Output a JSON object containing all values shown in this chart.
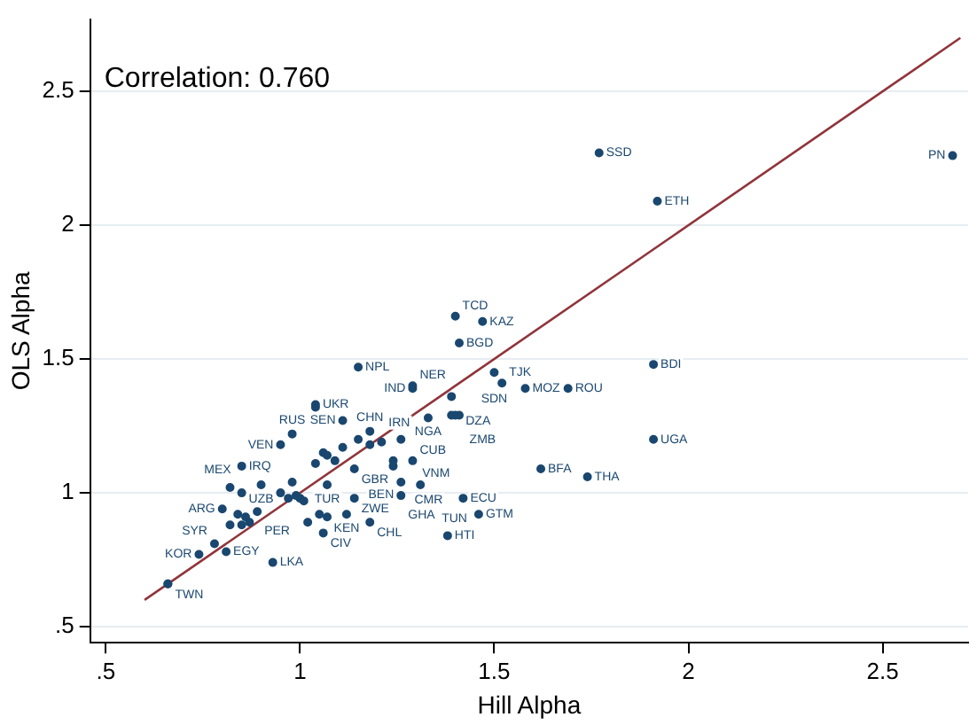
{
  "chart_data": {
    "type": "scatter",
    "xlabel": "Hill Alpha",
    "ylabel": "OLS Alpha",
    "annotations": [
      "Correlation: 0.760",
      {
        "text": "SSD",
        "x": 1.77,
        "y": 2.27
      },
      {
        "text": "PN",
        "x": 2.68,
        "y": 2.26
      },
      {
        "text": "ETH",
        "x": 1.92,
        "y": 2.09
      },
      {
        "text": "TCD",
        "x": 1.4,
        "y": 1.66
      },
      {
        "text": "KAZ",
        "x": 1.47,
        "y": 1.64
      },
      {
        "text": "BGD",
        "x": 1.41,
        "y": 1.56
      },
      {
        "text": "NPL",
        "x": 1.15,
        "y": 1.47
      },
      {
        "text": "BDI",
        "x": 1.91,
        "y": 1.48
      },
      {
        "text": "SDN",
        "x": 1.5,
        "y": 1.45
      },
      {
        "text": "TJK",
        "x": 1.52,
        "y": 1.41
      },
      {
        "text": "MOZ",
        "x": 1.58,
        "y": 1.39
      },
      {
        "text": "ROU",
        "x": 1.69,
        "y": 1.39
      },
      {
        "text": "NER",
        "x": 1.29,
        "y": 1.4
      },
      {
        "text": "IND",
        "x": 1.29,
        "y": 1.39
      },
      {
        "text": "DZA",
        "x": 1.39,
        "y": 1.36
      },
      {
        "text": "UKR",
        "x": 1.04,
        "y": 1.33
      },
      {
        "text": "SEN",
        "x": 1.11,
        "y": 1.27
      },
      {
        "text": "NGA",
        "x": 1.33,
        "y": 1.28
      },
      {
        "text": "ZMB",
        "x": 1.4,
        "y": 1.29
      },
      {
        "text": "UGA",
        "x": 1.91,
        "y": 1.2
      },
      {
        "text": "RUS",
        "x": 0.98,
        "y": 1.22
      },
      {
        "text": "VEN",
        "x": 0.95,
        "y": 1.18
      },
      {
        "text": "CHN",
        "x": 1.18,
        "y": 1.23
      },
      {
        "text": "VNM",
        "x": 1.26,
        "y": 1.2
      },
      {
        "text": "IRN",
        "x": 1.21,
        "y": 1.19
      },
      {
        "text": "GBR",
        "x": 1.14,
        "y": 1.09
      },
      {
        "text": "CMR",
        "x": 1.24,
        "y": 1.1
      },
      {
        "text": "CUB",
        "x": 1.29,
        "y": 1.12
      },
      {
        "text": "BFA",
        "x": 1.62,
        "y": 1.09
      },
      {
        "text": "THA",
        "x": 1.74,
        "y": 1.06
      },
      {
        "text": "BEN",
        "x": 1.26,
        "y": 1.04
      },
      {
        "text": "TUN",
        "x": 1.31,
        "y": 1.03
      },
      {
        "text": "GHA",
        "x": 1.26,
        "y": 0.99
      },
      {
        "text": "ZWE",
        "x": 1.14,
        "y": 0.98
      },
      {
        "text": "TUR",
        "x": 1.07,
        "y": 1.03
      },
      {
        "text": "ECU",
        "x": 1.42,
        "y": 0.98
      },
      {
        "text": "GTM",
        "x": 1.46,
        "y": 0.92
      },
      {
        "text": "HTI",
        "x": 1.38,
        "y": 0.84
      },
      {
        "text": "CHL",
        "x": 1.18,
        "y": 0.89
      },
      {
        "text": "KEN",
        "x": 1.12,
        "y": 0.92
      },
      {
        "text": "CIV",
        "x": 1.06,
        "y": 0.85
      },
      {
        "text": "LKA",
        "x": 0.93,
        "y": 0.74
      },
      {
        "text": "IRQ",
        "x": 0.85,
        "y": 1.1
      },
      {
        "text": "UZB",
        "x": 0.9,
        "y": 1.03
      },
      {
        "text": "MEX",
        "x": 0.85,
        "y": 1.0
      },
      {
        "text": "ARG",
        "x": 0.8,
        "y": 0.94
      },
      {
        "text": "PER",
        "x": 0.89,
        "y": 0.93
      },
      {
        "text": "SYR",
        "x": 0.78,
        "y": 0.81
      },
      {
        "text": "KOR",
        "x": 0.74,
        "y": 0.77
      },
      {
        "text": "EGY",
        "x": 0.81,
        "y": 0.78
      },
      {
        "text": "TWN",
        "x": 0.66,
        "y": 0.66
      }
    ],
    "xlim": [
      0.46,
      2.72
    ],
    "ylim": [
      0.44,
      2.77
    ],
    "xticks": [
      {
        "value": 0.5,
        "label": ".5"
      },
      1,
      1.5,
      2,
      2.5
    ],
    "yticks": [
      {
        "value": 0.5,
        "label": ".5"
      },
      1,
      1.5,
      2,
      2.5
    ],
    "grid": "y",
    "legend": false,
    "series": [
      {
        "type": "scatter",
        "color": "#1a476f",
        "marker": "circle",
        "x": [
          1.77,
          2.68,
          1.92,
          1.4,
          1.47,
          1.41,
          1.15,
          1.91,
          1.5,
          1.52,
          1.58,
          1.69,
          1.29,
          1.29,
          1.39,
          1.04,
          1.04,
          1.11,
          1.33,
          1.39,
          1.4,
          1.41,
          1.91,
          0.98,
          0.95,
          1.18,
          1.26,
          1.15,
          1.18,
          1.21,
          1.06,
          1.07,
          1.11,
          1.04,
          1.09,
          1.14,
          1.24,
          1.24,
          1.29,
          1.62,
          1.74,
          1.26,
          1.31,
          1.26,
          1.14,
          1.07,
          1.42,
          1.46,
          1.38,
          1.18,
          1.12,
          1.05,
          1.07,
          1.02,
          1.06,
          0.93,
          0.85,
          0.82,
          0.9,
          0.85,
          0.98,
          0.95,
          0.97,
          0.99,
          1.0,
          1.01,
          0.8,
          0.89,
          0.82,
          0.84,
          0.85,
          0.86,
          0.87,
          0.78,
          0.74,
          0.81,
          0.66,
          0.66
        ],
        "values": [
          2.27,
          2.26,
          2.09,
          1.66,
          1.64,
          1.56,
          1.47,
          1.48,
          1.45,
          1.41,
          1.39,
          1.39,
          1.4,
          1.39,
          1.36,
          1.33,
          1.32,
          1.27,
          1.28,
          1.29,
          1.29,
          1.29,
          1.2,
          1.22,
          1.18,
          1.23,
          1.2,
          1.2,
          1.18,
          1.19,
          1.15,
          1.14,
          1.17,
          1.11,
          1.12,
          1.09,
          1.12,
          1.1,
          1.12,
          1.09,
          1.06,
          1.04,
          1.03,
          0.99,
          0.98,
          1.03,
          0.98,
          0.92,
          0.84,
          0.89,
          0.92,
          0.92,
          0.91,
          0.89,
          0.85,
          0.74,
          1.1,
          1.02,
          1.03,
          1.0,
          1.04,
          1.0,
          0.98,
          0.99,
          0.98,
          0.97,
          0.94,
          0.93,
          0.88,
          0.92,
          0.88,
          0.91,
          0.89,
          0.81,
          0.77,
          0.78,
          0.66,
          0.66
        ]
      },
      {
        "type": "line",
        "color": "#90353b",
        "marker": "none",
        "x": [
          0.6,
          2.7
        ],
        "values": [
          0.6,
          2.7
        ]
      }
    ]
  }
}
